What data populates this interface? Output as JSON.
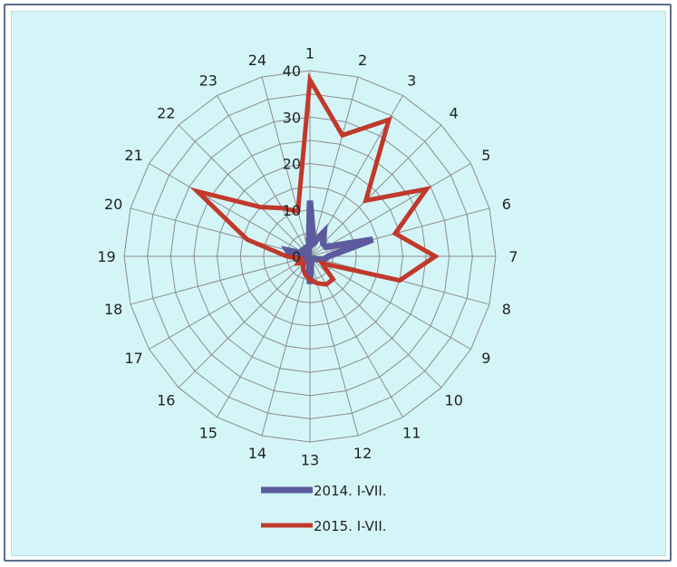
{
  "chart_data": {
    "type": "radar",
    "categories": [
      "1",
      "2",
      "3",
      "4",
      "5",
      "6",
      "7",
      "8",
      "9",
      "10",
      "11",
      "12",
      "13",
      "14",
      "15",
      "16",
      "17",
      "18",
      "19",
      "20",
      "21",
      "22",
      "23",
      "24"
    ],
    "radial_ticks": [
      0,
      10,
      20,
      30,
      40
    ],
    "rlim": [
      0,
      40
    ],
    "grid": true,
    "legend": "bottom",
    "series": [
      {
        "name": "2014. I-VII.",
        "color": "#5b5b9e",
        "values": [
          12,
          3,
          6,
          4,
          4,
          14,
          4,
          3,
          1,
          1,
          1,
          1,
          6,
          1,
          1,
          1,
          1,
          1,
          4,
          5,
          1,
          2,
          2,
          1
        ]
      },
      {
        "name": "2015. I-VII.",
        "color": "#c0392b",
        "values": [
          38,
          27,
          34,
          17,
          29,
          19,
          27,
          20,
          3,
          7,
          7,
          6,
          5,
          4,
          3,
          2,
          3,
          2,
          5,
          14,
          28,
          15,
          12,
          10
        ]
      }
    ]
  }
}
